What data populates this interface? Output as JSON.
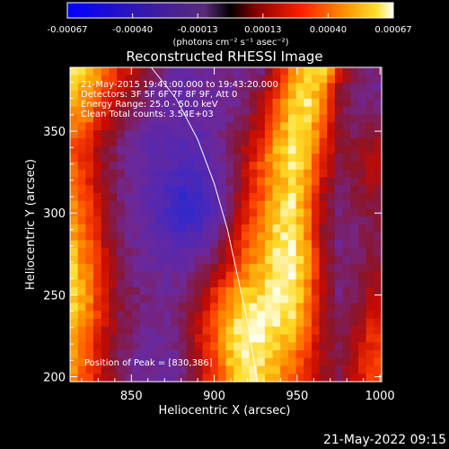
{
  "chart_data": {
    "type": "heatmap",
    "title": "Reconstructed RHESSI Image",
    "xlabel": "Heliocentric X (arcsec)",
    "ylabel": "Heliocentric Y (arcsec)",
    "xlim": [
      813,
      1001
    ],
    "ylim": [
      197,
      389
    ],
    "x_ticks": [
      850,
      900,
      950,
      1000
    ],
    "y_ticks": [
      200,
      250,
      300,
      350
    ],
    "colorbar": {
      "label": "(photons cm⁻² s⁻¹ asec⁻²)",
      "tick_labels": [
        "-0.00067",
        "-0.00040",
        "-0.00013",
        "0.00013",
        "0.00040",
        "0.00067"
      ],
      "range": [
        -0.00067,
        0.00067
      ]
    },
    "annotations": [
      "21-May-2015 19:41:00.000 to 19:43:20.000",
      "Detectors: 3F 5F 6F 7F 8F 9F, Att 0",
      "Energy Range: 25.0 - 50.0 keV",
      "Clean    Total counts: 3.54E+03"
    ],
    "peak_label": "Position of Peak = [830,386]",
    "peak_position": [
      830,
      386
    ],
    "limb_curve": [
      [
        862,
        389
      ],
      [
        877,
        370
      ],
      [
        890,
        345
      ],
      [
        900,
        318
      ],
      [
        908,
        290
      ],
      [
        914,
        262
      ],
      [
        920,
        234
      ],
      [
        926,
        197
      ]
    ],
    "intensity_field": {
      "note_grid": "20 x 20 cells over xlim/ylim, row 0 = top (y=389)",
      "rows": [
        [
          0.95,
          0.9,
          0.75,
          0.6,
          0.5,
          0.4,
          0.3,
          0.25,
          0.3,
          0.3,
          0.35,
          0.3,
          0.35,
          0.55,
          0.8,
          0.9,
          0.95,
          0.6,
          0.4,
          0.35
        ],
        [
          0.9,
          0.85,
          0.7,
          0.55,
          0.45,
          0.35,
          0.28,
          0.25,
          0.28,
          0.3,
          0.3,
          0.35,
          0.45,
          0.6,
          0.85,
          0.92,
          0.85,
          0.5,
          0.35,
          0.3
        ],
        [
          0.85,
          0.8,
          0.6,
          0.5,
          0.4,
          0.3,
          0.25,
          0.22,
          0.25,
          0.28,
          0.3,
          0.35,
          0.5,
          0.7,
          0.9,
          0.95,
          0.8,
          0.45,
          0.35,
          0.35
        ],
        [
          0.8,
          0.75,
          0.55,
          0.45,
          0.35,
          0.3,
          0.25,
          0.2,
          0.25,
          0.3,
          0.33,
          0.4,
          0.55,
          0.75,
          0.9,
          0.92,
          0.75,
          0.45,
          0.35,
          0.4
        ],
        [
          0.75,
          0.65,
          0.5,
          0.4,
          0.3,
          0.25,
          0.22,
          0.2,
          0.22,
          0.28,
          0.35,
          0.45,
          0.6,
          0.8,
          0.92,
          0.9,
          0.7,
          0.45,
          0.4,
          0.45
        ],
        [
          0.7,
          0.6,
          0.45,
          0.35,
          0.28,
          0.22,
          0.2,
          0.18,
          0.2,
          0.25,
          0.35,
          0.5,
          0.65,
          0.85,
          0.95,
          0.88,
          0.65,
          0.45,
          0.45,
          0.5
        ],
        [
          0.72,
          0.6,
          0.45,
          0.35,
          0.28,
          0.22,
          0.18,
          0.15,
          0.18,
          0.25,
          0.35,
          0.55,
          0.7,
          0.88,
          0.95,
          0.85,
          0.6,
          0.4,
          0.45,
          0.5
        ],
        [
          0.75,
          0.62,
          0.45,
          0.35,
          0.27,
          0.22,
          0.15,
          0.1,
          0.12,
          0.2,
          0.35,
          0.55,
          0.7,
          0.85,
          0.92,
          0.82,
          0.55,
          0.38,
          0.42,
          0.48
        ],
        [
          0.78,
          0.65,
          0.48,
          0.35,
          0.27,
          0.2,
          0.12,
          0.05,
          0.08,
          0.18,
          0.35,
          0.58,
          0.72,
          0.88,
          0.95,
          0.8,
          0.5,
          0.35,
          0.4,
          0.45
        ],
        [
          0.8,
          0.68,
          0.5,
          0.36,
          0.28,
          0.2,
          0.12,
          0.05,
          0.08,
          0.2,
          0.38,
          0.6,
          0.75,
          0.9,
          0.95,
          0.78,
          0.5,
          0.35,
          0.38,
          0.42
        ],
        [
          0.82,
          0.7,
          0.5,
          0.36,
          0.28,
          0.22,
          0.15,
          0.1,
          0.12,
          0.25,
          0.42,
          0.65,
          0.78,
          0.92,
          0.96,
          0.78,
          0.48,
          0.33,
          0.35,
          0.4
        ],
        [
          0.85,
          0.72,
          0.52,
          0.38,
          0.3,
          0.25,
          0.2,
          0.18,
          0.22,
          0.32,
          0.5,
          0.7,
          0.82,
          0.95,
          0.97,
          0.8,
          0.5,
          0.33,
          0.35,
          0.4
        ],
        [
          0.88,
          0.75,
          0.55,
          0.4,
          0.32,
          0.28,
          0.25,
          0.25,
          0.3,
          0.4,
          0.58,
          0.75,
          0.85,
          0.96,
          0.98,
          0.82,
          0.5,
          0.35,
          0.35,
          0.42
        ],
        [
          0.9,
          0.78,
          0.55,
          0.4,
          0.33,
          0.3,
          0.28,
          0.3,
          0.38,
          0.5,
          0.65,
          0.8,
          0.88,
          0.97,
          0.98,
          0.82,
          0.5,
          0.35,
          0.38,
          0.45
        ],
        [
          0.92,
          0.8,
          0.58,
          0.42,
          0.35,
          0.32,
          0.3,
          0.35,
          0.45,
          0.6,
          0.75,
          0.88,
          0.92,
          0.98,
          0.97,
          0.8,
          0.5,
          0.35,
          0.4,
          0.5
        ],
        [
          0.9,
          0.78,
          0.56,
          0.42,
          0.35,
          0.33,
          0.32,
          0.38,
          0.5,
          0.68,
          0.82,
          0.95,
          0.95,
          0.97,
          0.95,
          0.78,
          0.5,
          0.38,
          0.42,
          0.55
        ],
        [
          0.88,
          0.75,
          0.55,
          0.4,
          0.35,
          0.33,
          0.33,
          0.4,
          0.55,
          0.72,
          0.88,
          0.98,
          0.97,
          0.95,
          0.9,
          0.75,
          0.5,
          0.4,
          0.45,
          0.6
        ],
        [
          0.85,
          0.72,
          0.52,
          0.4,
          0.33,
          0.3,
          0.3,
          0.38,
          0.55,
          0.72,
          0.9,
          0.99,
          0.98,
          0.92,
          0.85,
          0.7,
          0.5,
          0.4,
          0.48,
          0.62
        ],
        [
          0.82,
          0.7,
          0.5,
          0.38,
          0.3,
          0.28,
          0.28,
          0.35,
          0.52,
          0.7,
          0.88,
          0.98,
          0.95,
          0.88,
          0.8,
          0.65,
          0.48,
          0.42,
          0.5,
          0.65
        ],
        [
          0.8,
          0.68,
          0.5,
          0.38,
          0.3,
          0.28,
          0.28,
          0.35,
          0.5,
          0.68,
          0.85,
          0.95,
          0.92,
          0.85,
          0.75,
          0.6,
          0.45,
          0.42,
          0.52,
          0.68
        ]
      ]
    }
  },
  "footer_timestamp": "21-May-2022 09:15"
}
